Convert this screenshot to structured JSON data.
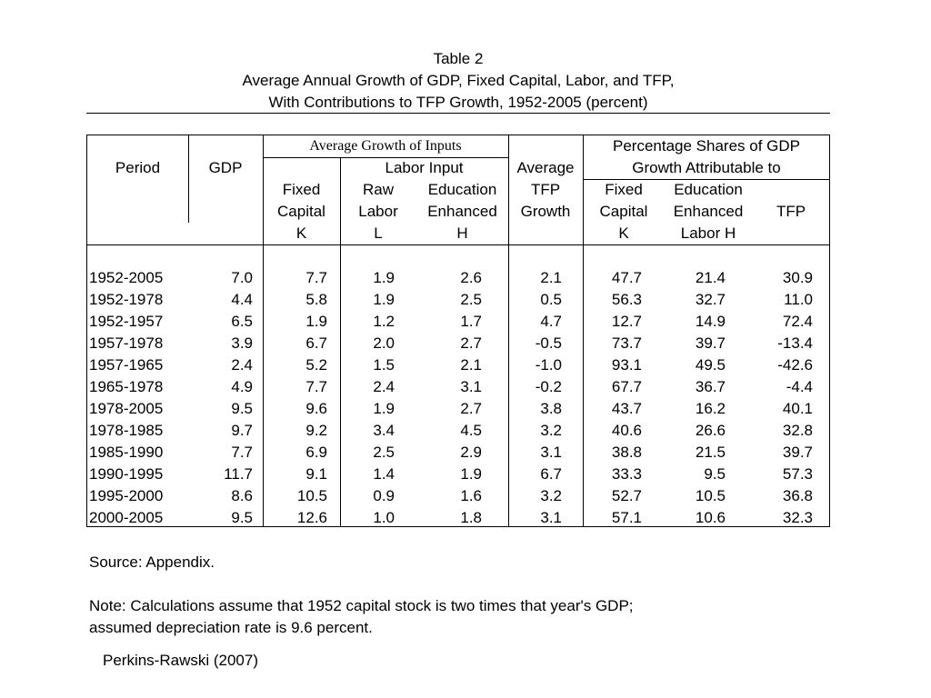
{
  "title": {
    "line1": "Table 2",
    "line2": "Average Annual Growth of GDP, Fixed Capital, Labor, and TFP,",
    "line3": "With Contributions to TFP Growth, 1952-2005 (percent)"
  },
  "header": {
    "period": "Period",
    "gdp": "GDP",
    "avg_growth_inputs": "Average Growth of Inputs",
    "labor_input": "Labor Input",
    "fixed": "Fixed",
    "capital": "Capital",
    "raw": "Raw",
    "labor": "Labor",
    "education": "Education",
    "enhanced": "Enhanced",
    "average": "Average",
    "tfp": "TFP",
    "growth": "Growth",
    "pct_shares_line1": "Percentage Shares of GDP",
    "pct_shares_line2": "Growth Attributable to",
    "share_fixed": "Fixed",
    "share_capital": "Capital",
    "share_education": "Education",
    "share_enhanced": "Enhanced",
    "share_tfp": "TFP",
    "sym_k": "K",
    "sym_l": "L",
    "sym_h": "H",
    "sym_share_k": "K",
    "sym_share_labor_h": "Labor H"
  },
  "rows": [
    [
      "1952-2005",
      "7.0",
      "7.7",
      "1.9",
      "2.6",
      "2.1",
      "47.7",
      "21.4",
      "30.9"
    ],
    [
      "1952-1978",
      "4.4",
      "5.8",
      "1.9",
      "2.5",
      "0.5",
      "56.3",
      "32.7",
      "11.0"
    ],
    [
      "1952-1957",
      "6.5",
      "1.9",
      "1.2",
      "1.7",
      "4.7",
      "12.7",
      "14.9",
      "72.4"
    ],
    [
      "1957-1978",
      "3.9",
      "6.7",
      "2.0",
      "2.7",
      "-0.5",
      "73.7",
      "39.7",
      "-13.4"
    ],
    [
      "1957-1965",
      "2.4",
      "5.2",
      "1.5",
      "2.1",
      "-1.0",
      "93.1",
      "49.5",
      "-42.6"
    ],
    [
      "1965-1978",
      "4.9",
      "7.7",
      "2.4",
      "3.1",
      "-0.2",
      "67.7",
      "36.7",
      "-4.4"
    ],
    [
      "1978-2005",
      "9.5",
      "9.6",
      "1.9",
      "2.7",
      "3.8",
      "43.7",
      "16.2",
      "40.1"
    ],
    [
      "1978-1985",
      "9.7",
      "9.2",
      "3.4",
      "4.5",
      "3.2",
      "40.6",
      "26.6",
      "32.8"
    ],
    [
      "1985-1990",
      "7.7",
      "6.9",
      "2.5",
      "2.9",
      "3.1",
      "38.8",
      "21.5",
      "39.7"
    ],
    [
      "1990-1995",
      "11.7",
      "9.1",
      "1.4",
      "1.9",
      "6.7",
      "33.3",
      "9.5",
      "57.3"
    ],
    [
      "1995-2000",
      "8.6",
      "10.5",
      "0.9",
      "1.6",
      "3.2",
      "52.7",
      "10.5",
      "36.8"
    ],
    [
      "2000-2005",
      "9.5",
      "12.6",
      "1.0",
      "1.8",
      "3.1",
      "57.1",
      "10.6",
      "32.3"
    ]
  ],
  "source": "Source: Appendix.",
  "note_line1": "Note: Calculations assume that 1952 capital stock is two times that year's GDP;",
  "note_line2": "assumed depreciation rate is 9.6 percent.",
  "citation": "Perkins-Rawski (2007)"
}
